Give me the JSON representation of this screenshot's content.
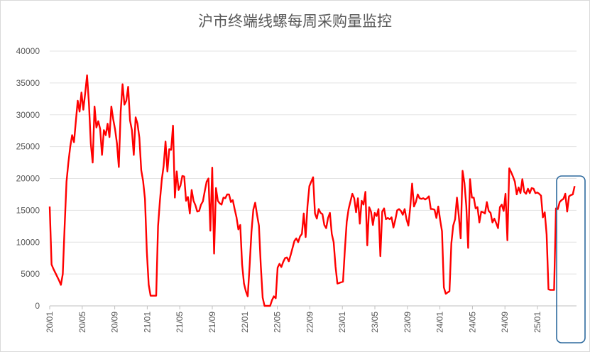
{
  "chart_data": {
    "type": "line",
    "title": "沪市终端线螺每周采购量监控",
    "xlabel": "",
    "ylabel": "",
    "ylim": [
      0,
      40000
    ],
    "yticks": [
      "0",
      "5000",
      "10000",
      "15000",
      "20000",
      "25000",
      "30000",
      "35000",
      "40000"
    ],
    "xticks": [
      "20/01",
      "20/05",
      "20/09",
      "21/01",
      "21/05",
      "21/09",
      "22/01",
      "22/05",
      "22/09",
      "23/01",
      "23/05",
      "23/09",
      "24/01",
      "24/05",
      "24/09",
      "25/01"
    ],
    "grid": "horizontal",
    "series": [
      {
        "color": "#ff0000",
        "values": [
          15600,
          6500,
          5800,
          5200,
          4600,
          4000,
          3300,
          5000,
          12500,
          19500,
          22500,
          25000,
          26800,
          25700,
          29000,
          32200,
          30500,
          33500,
          30800,
          33400,
          36200,
          31800,
          25500,
          22500,
          31300,
          28000,
          29000,
          27800,
          23700,
          27600,
          26800,
          28600,
          26500,
          31300,
          29300,
          27700,
          25500,
          21800,
          30500,
          34800,
          31600,
          32200,
          34400,
          29100,
          27600,
          23700,
          29600,
          28600,
          26400,
          21300,
          19600,
          16800,
          8500,
          3300,
          1600,
          1600,
          1600,
          1600,
          12500,
          16500,
          19800,
          22000,
          25800,
          21100,
          24600,
          24500,
          28300,
          17000,
          21100,
          18200,
          18900,
          20400,
          20300,
          16500,
          17100,
          14500,
          18200,
          16500,
          15800,
          14800,
          14900,
          15900,
          16400,
          18000,
          19500,
          20000,
          11800,
          21700,
          8200,
          18500,
          16500,
          16100,
          15900,
          17000,
          16900,
          17500,
          17500,
          16300,
          16600,
          15200,
          13900,
          12000,
          12700,
          6500,
          3500,
          2300,
          1500,
          6200,
          11600,
          15100,
          16200,
          14300,
          12600,
          6300,
          1300,
          0,
          0,
          0,
          0,
          900,
          1500,
          1200,
          6000,
          6600,
          6100,
          6900,
          7500,
          7600,
          7000,
          8000,
          9100,
          10200,
          10600,
          10000,
          10900,
          11300,
          14500,
          10800,
          15700,
          18800,
          19500,
          20200,
          14500,
          13700,
          15200,
          14600,
          14400,
          12700,
          12200,
          13800,
          14600,
          11300,
          10000,
          6200,
          3500,
          3600,
          3700,
          3800,
          8800,
          13200,
          15200,
          16400,
          17600,
          16900,
          14700,
          16900,
          12900,
          16500,
          15900,
          17900,
          9500,
          15500,
          14800,
          12700,
          14600,
          14100,
          15200,
          7800,
          14800,
          15300,
          13600,
          13800,
          13600,
          13900,
          12300,
          13500,
          15000,
          15200,
          14900,
          14300,
          15200,
          13600,
          12600,
          15500,
          19200,
          15600,
          16300,
          17500,
          16900,
          16800,
          16900,
          16700,
          16900,
          17200,
          15200,
          15200,
          15100,
          13800,
          15600,
          13500,
          11700,
          2900,
          1900,
          2100,
          2300,
          9800,
          12600,
          13600,
          17000,
          14100,
          10600,
          21200,
          19300,
          15700,
          9100,
          19900,
          17000,
          17000,
          15300,
          15500,
          13100,
          14800,
          14700,
          14500,
          16300,
          14900,
          14600,
          13100,
          13700,
          13000,
          12200,
          15500,
          15900,
          14900,
          17600,
          10300,
          21600,
          21000,
          20300,
          19500,
          17500,
          18600,
          17700,
          19900,
          17900,
          17600,
          18400,
          17700,
          18500,
          18400,
          17700,
          17800,
          17600,
          17300,
          13900,
          14700,
          11200,
          2600,
          2500,
          2500,
          2500,
          15300,
          15200,
          16300,
          16600,
          16800,
          17600,
          14800,
          17200,
          17400,
          17500,
          18800
        ]
      }
    ]
  }
}
